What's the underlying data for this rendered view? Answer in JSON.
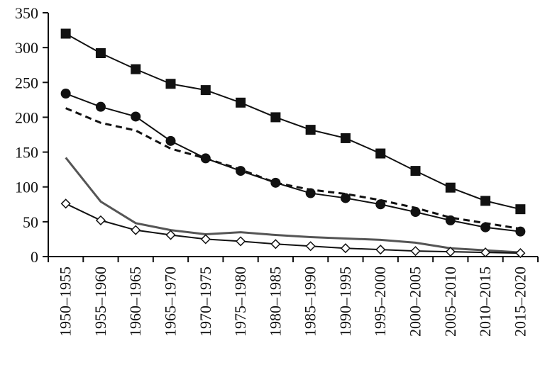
{
  "chart_data": {
    "type": "line",
    "title": "",
    "xlabel": "",
    "ylabel": "",
    "categories": [
      "1950–1955",
      "1955–1960",
      "1960–1965",
      "1965–1970",
      "1970–1975",
      "1975–1980",
      "1980–1985",
      "1985–1990",
      "1990–1995",
      "1995–2000",
      "2000–2005",
      "2005–2010",
      "2010–2015",
      "2015–2020"
    ],
    "ylim": [
      0,
      350
    ],
    "yticks": [
      "0",
      "50",
      "100",
      "150",
      "200",
      "250",
      "300",
      "350"
    ],
    "grid": false,
    "legend": "none",
    "series": [
      {
        "values": [
          320,
          292,
          269,
          248,
          239,
          221,
          200,
          182,
          170,
          148,
          123,
          99,
          80,
          68
        ],
        "style": "solid",
        "marker": "filled-square",
        "color": "#111111"
      },
      {
        "values": [
          234,
          215,
          201,
          166,
          141,
          123,
          106,
          91,
          84,
          75,
          64,
          52,
          42,
          36
        ],
        "style": "solid",
        "marker": "filled-circle",
        "color": "#111111"
      },
      {
        "values": [
          213,
          192,
          181,
          155,
          141,
          125,
          106,
          96,
          90,
          81,
          70,
          56,
          48,
          40
        ],
        "style": "dashed",
        "marker": "none",
        "color": "#111111"
      },
      {
        "values": [
          142,
          79,
          48,
          38,
          32,
          35,
          31,
          28,
          26,
          24,
          20,
          12,
          9,
          6
        ],
        "style": "solid",
        "marker": "none",
        "color": "#555555"
      },
      {
        "values": [
          76,
          52,
          38,
          31,
          25,
          22,
          18,
          15,
          12,
          10,
          8,
          7,
          6,
          5
        ],
        "style": "solid",
        "marker": "open-diamond",
        "color": "#111111"
      }
    ]
  }
}
